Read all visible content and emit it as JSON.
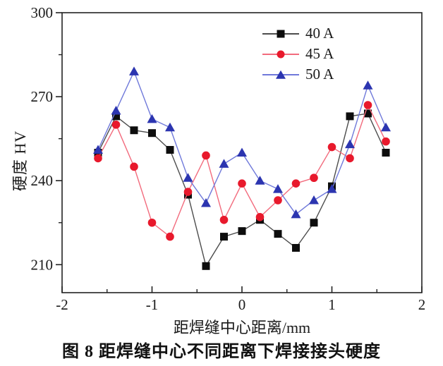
{
  "figure": {
    "caption": "图 8  距焊缝中心不同距离下焊接接头硬度"
  },
  "chart_data": {
    "type": "line",
    "title": "",
    "xlabel": "距焊缝中心距离/mm",
    "ylabel": "硬度 HV",
    "xlim": [
      -2,
      2
    ],
    "ylim": [
      200,
      300
    ],
    "x_major_ticks": [
      -2,
      -1,
      0,
      1,
      2
    ],
    "x_major_tick_labels": [
      "-2",
      "-1",
      "0",
      "1",
      "2"
    ],
    "x_minor_ticks": [
      -1.5,
      -0.5,
      0.5,
      1.5
    ],
    "y_major_ticks": [
      210,
      240,
      270,
      300
    ],
    "y_major_tick_labels": [
      "210",
      "240",
      "270",
      "300"
    ],
    "y_minor_ticks": [
      225,
      255,
      285
    ],
    "grid": false,
    "legend_position": "upper center-right inside",
    "x": [
      -1.6,
      -1.4,
      -1.2,
      -1.0,
      -0.8,
      -0.6,
      -0.4,
      -0.2,
      0,
      0.2,
      0.4,
      0.6,
      0.8,
      1.0,
      1.2,
      1.4,
      1.6
    ],
    "series": [
      {
        "name": "40 A",
        "marker": "square",
        "marker_color": "#0d0d0d",
        "line_color": "#4d4d4d",
        "values": [
          250,
          263,
          258,
          257,
          251,
          235,
          209.5,
          220,
          222,
          226,
          221,
          216,
          225,
          238,
          263,
          264,
          250
        ]
      },
      {
        "name": "45 A",
        "marker": "circle",
        "marker_color": "#e8192c",
        "line_color": "#f26b7d",
        "values": [
          248,
          260,
          245,
          225,
          220,
          236,
          249,
          226,
          239,
          227,
          233,
          239,
          241,
          252,
          248,
          267,
          254
        ]
      },
      {
        "name": "50 A",
        "marker": "triangle",
        "marker_color": "#2c35b0",
        "line_color": "#6f79da",
        "values": [
          251,
          265,
          279,
          262,
          259,
          241,
          232,
          246,
          250,
          240,
          237,
          228,
          233,
          237,
          253,
          274,
          259
        ]
      }
    ]
  }
}
